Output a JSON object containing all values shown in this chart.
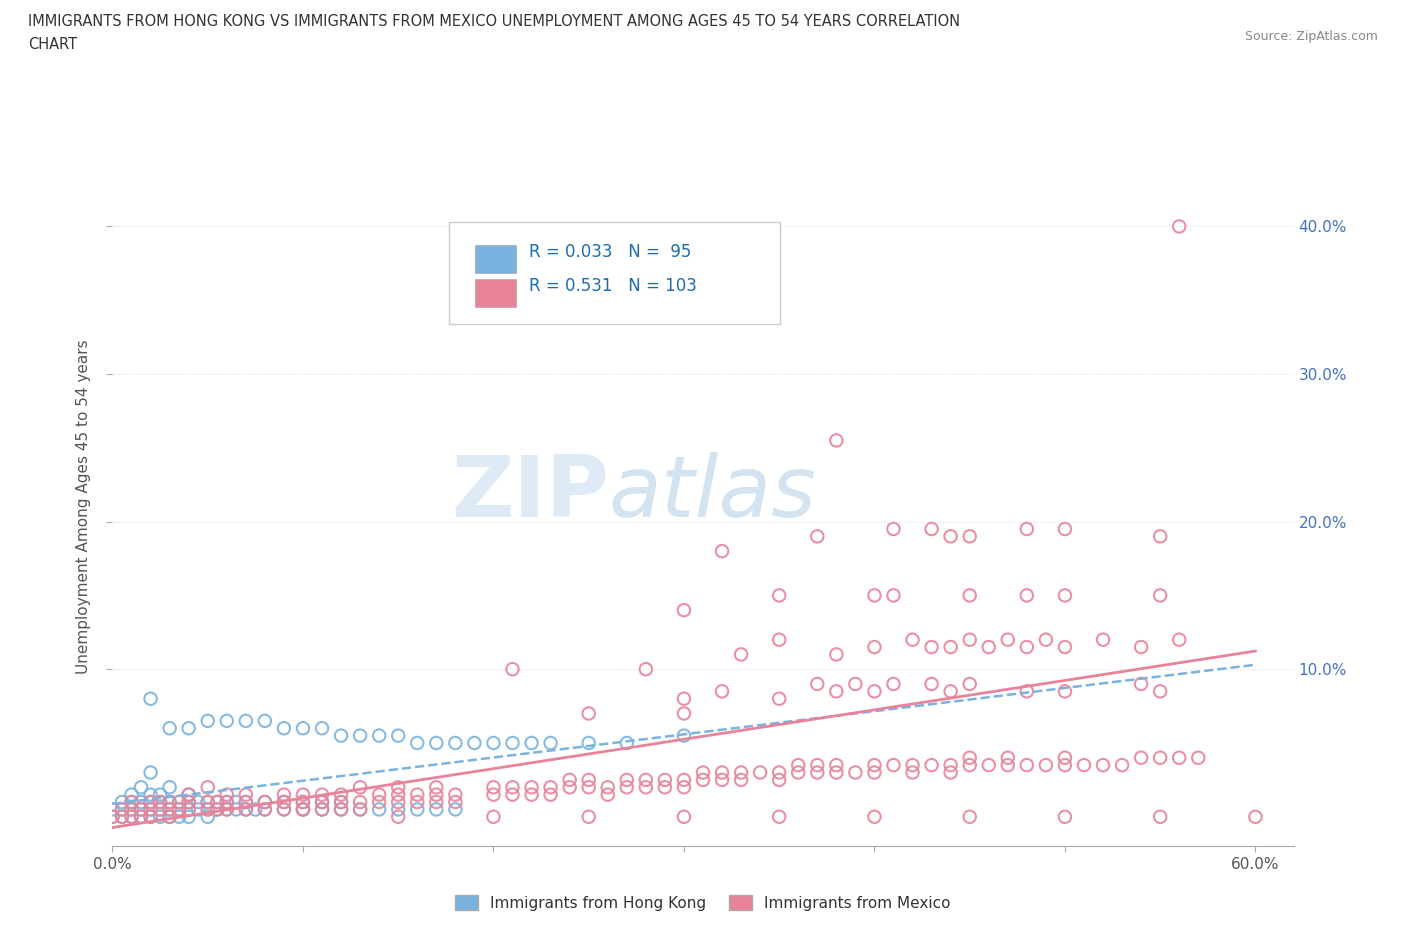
{
  "title_line1": "IMMIGRANTS FROM HONG KONG VS IMMIGRANTS FROM MEXICO UNEMPLOYMENT AMONG AGES 45 TO 54 YEARS CORRELATION",
  "title_line2": "CHART",
  "source_text": "Source: ZipAtlas.com",
  "ylabel": "Unemployment Among Ages 45 to 54 years",
  "xlim": [
    0.0,
    0.62
  ],
  "ylim": [
    -0.02,
    0.44
  ],
  "xticks": [
    0.0,
    0.1,
    0.2,
    0.3,
    0.4,
    0.5,
    0.6
  ],
  "xticklabels": [
    "0.0%",
    "",
    "",
    "",
    "",
    "",
    "60.0%"
  ],
  "ytick_positions": [
    0.1,
    0.2,
    0.3,
    0.4
  ],
  "ytick_labels": [
    "10.0%",
    "20.0%",
    "30.0%",
    "40.0%"
  ],
  "hk_color": "#7ab3e0",
  "mx_color": "#e8839a",
  "hk_line_color": "#7ab3e0",
  "mx_line_color": "#e8839a",
  "background_color": "#ffffff",
  "grid_color": "#e0e0e0",
  "watermark_color": "#d8e8f0",
  "hk_scatter": [
    [
      0.0,
      0.0
    ],
    [
      0.0,
      0.005
    ],
    [
      0.005,
      0.0
    ],
    [
      0.005,
      0.005
    ],
    [
      0.005,
      0.01
    ],
    [
      0.01,
      0.0
    ],
    [
      0.01,
      0.005
    ],
    [
      0.01,
      0.01
    ],
    [
      0.01,
      0.015
    ],
    [
      0.015,
      0.0
    ],
    [
      0.015,
      0.005
    ],
    [
      0.015,
      0.01
    ],
    [
      0.015,
      0.02
    ],
    [
      0.02,
      0.0
    ],
    [
      0.02,
      0.005
    ],
    [
      0.02,
      0.01
    ],
    [
      0.02,
      0.015
    ],
    [
      0.02,
      0.03
    ],
    [
      0.025,
      0.0
    ],
    [
      0.025,
      0.005
    ],
    [
      0.025,
      0.01
    ],
    [
      0.025,
      0.015
    ],
    [
      0.03,
      0.0
    ],
    [
      0.03,
      0.005
    ],
    [
      0.03,
      0.01
    ],
    [
      0.03,
      0.02
    ],
    [
      0.035,
      0.0
    ],
    [
      0.035,
      0.005
    ],
    [
      0.035,
      0.01
    ],
    [
      0.04,
      0.0
    ],
    [
      0.04,
      0.005
    ],
    [
      0.04,
      0.01
    ],
    [
      0.04,
      0.015
    ],
    [
      0.045,
      0.005
    ],
    [
      0.045,
      0.01
    ],
    [
      0.05,
      0.0
    ],
    [
      0.05,
      0.005
    ],
    [
      0.05,
      0.01
    ],
    [
      0.055,
      0.005
    ],
    [
      0.055,
      0.01
    ],
    [
      0.06,
      0.005
    ],
    [
      0.06,
      0.01
    ],
    [
      0.065,
      0.005
    ],
    [
      0.065,
      0.01
    ],
    [
      0.07,
      0.005
    ],
    [
      0.07,
      0.01
    ],
    [
      0.075,
      0.005
    ],
    [
      0.08,
      0.005
    ],
    [
      0.08,
      0.01
    ],
    [
      0.09,
      0.005
    ],
    [
      0.09,
      0.01
    ],
    [
      0.1,
      0.005
    ],
    [
      0.1,
      0.01
    ],
    [
      0.11,
      0.005
    ],
    [
      0.11,
      0.01
    ],
    [
      0.12,
      0.005
    ],
    [
      0.12,
      0.01
    ],
    [
      0.13,
      0.005
    ],
    [
      0.14,
      0.005
    ],
    [
      0.15,
      0.005
    ],
    [
      0.16,
      0.005
    ],
    [
      0.17,
      0.005
    ],
    [
      0.18,
      0.005
    ],
    [
      0.02,
      0.08
    ],
    [
      0.03,
      0.06
    ],
    [
      0.04,
      0.06
    ],
    [
      0.05,
      0.065
    ],
    [
      0.06,
      0.065
    ],
    [
      0.07,
      0.065
    ],
    [
      0.08,
      0.065
    ],
    [
      0.09,
      0.06
    ],
    [
      0.1,
      0.06
    ],
    [
      0.11,
      0.06
    ],
    [
      0.12,
      0.055
    ],
    [
      0.13,
      0.055
    ],
    [
      0.14,
      0.055
    ],
    [
      0.15,
      0.055
    ],
    [
      0.16,
      0.05
    ],
    [
      0.17,
      0.05
    ],
    [
      0.18,
      0.05
    ],
    [
      0.19,
      0.05
    ],
    [
      0.2,
      0.05
    ],
    [
      0.21,
      0.05
    ],
    [
      0.22,
      0.05
    ],
    [
      0.23,
      0.05
    ],
    [
      0.25,
      0.05
    ],
    [
      0.27,
      0.05
    ],
    [
      0.3,
      0.055
    ]
  ],
  "mx_scatter": [
    [
      0.0,
      0.0
    ],
    [
      0.005,
      0.0
    ],
    [
      0.005,
      0.005
    ],
    [
      0.01,
      0.0
    ],
    [
      0.01,
      0.005
    ],
    [
      0.01,
      0.01
    ],
    [
      0.015,
      0.0
    ],
    [
      0.015,
      0.005
    ],
    [
      0.02,
      0.0
    ],
    [
      0.02,
      0.005
    ],
    [
      0.02,
      0.01
    ],
    [
      0.025,
      0.005
    ],
    [
      0.025,
      0.01
    ],
    [
      0.03,
      0.0
    ],
    [
      0.03,
      0.005
    ],
    [
      0.03,
      0.01
    ],
    [
      0.035,
      0.005
    ],
    [
      0.035,
      0.01
    ],
    [
      0.04,
      0.005
    ],
    [
      0.04,
      0.01
    ],
    [
      0.04,
      0.015
    ],
    [
      0.05,
      0.005
    ],
    [
      0.05,
      0.01
    ],
    [
      0.05,
      0.02
    ],
    [
      0.055,
      0.005
    ],
    [
      0.055,
      0.01
    ],
    [
      0.06,
      0.005
    ],
    [
      0.06,
      0.01
    ],
    [
      0.06,
      0.015
    ],
    [
      0.07,
      0.005
    ],
    [
      0.07,
      0.01
    ],
    [
      0.07,
      0.015
    ],
    [
      0.08,
      0.005
    ],
    [
      0.08,
      0.01
    ],
    [
      0.09,
      0.005
    ],
    [
      0.09,
      0.01
    ],
    [
      0.09,
      0.015
    ],
    [
      0.1,
      0.005
    ],
    [
      0.1,
      0.01
    ],
    [
      0.1,
      0.015
    ],
    [
      0.11,
      0.005
    ],
    [
      0.11,
      0.01
    ],
    [
      0.11,
      0.015
    ],
    [
      0.12,
      0.005
    ],
    [
      0.12,
      0.01
    ],
    [
      0.12,
      0.015
    ],
    [
      0.13,
      0.005
    ],
    [
      0.13,
      0.01
    ],
    [
      0.13,
      0.02
    ],
    [
      0.14,
      0.01
    ],
    [
      0.14,
      0.015
    ],
    [
      0.15,
      0.01
    ],
    [
      0.15,
      0.015
    ],
    [
      0.15,
      0.02
    ],
    [
      0.16,
      0.01
    ],
    [
      0.16,
      0.015
    ],
    [
      0.17,
      0.01
    ],
    [
      0.17,
      0.015
    ],
    [
      0.17,
      0.02
    ],
    [
      0.18,
      0.01
    ],
    [
      0.18,
      0.015
    ],
    [
      0.2,
      0.015
    ],
    [
      0.2,
      0.02
    ],
    [
      0.21,
      0.015
    ],
    [
      0.21,
      0.02
    ],
    [
      0.22,
      0.015
    ],
    [
      0.22,
      0.02
    ],
    [
      0.23,
      0.015
    ],
    [
      0.23,
      0.02
    ],
    [
      0.24,
      0.02
    ],
    [
      0.24,
      0.025
    ],
    [
      0.25,
      0.02
    ],
    [
      0.25,
      0.025
    ],
    [
      0.26,
      0.015
    ],
    [
      0.26,
      0.02
    ],
    [
      0.27,
      0.02
    ],
    [
      0.27,
      0.025
    ],
    [
      0.28,
      0.02
    ],
    [
      0.28,
      0.025
    ],
    [
      0.29,
      0.02
    ],
    [
      0.29,
      0.025
    ],
    [
      0.3,
      0.02
    ],
    [
      0.3,
      0.025
    ],
    [
      0.31,
      0.025
    ],
    [
      0.31,
      0.03
    ],
    [
      0.32,
      0.025
    ],
    [
      0.32,
      0.03
    ],
    [
      0.33,
      0.025
    ],
    [
      0.33,
      0.03
    ],
    [
      0.34,
      0.03
    ],
    [
      0.35,
      0.025
    ],
    [
      0.35,
      0.03
    ],
    [
      0.36,
      0.03
    ],
    [
      0.36,
      0.035
    ],
    [
      0.37,
      0.03
    ],
    [
      0.37,
      0.035
    ],
    [
      0.38,
      0.03
    ],
    [
      0.38,
      0.035
    ],
    [
      0.39,
      0.03
    ],
    [
      0.4,
      0.03
    ],
    [
      0.4,
      0.035
    ],
    [
      0.41,
      0.035
    ],
    [
      0.42,
      0.03
    ],
    [
      0.42,
      0.035
    ],
    [
      0.43,
      0.035
    ],
    [
      0.44,
      0.03
    ],
    [
      0.44,
      0.035
    ],
    [
      0.45,
      0.035
    ],
    [
      0.45,
      0.04
    ],
    [
      0.46,
      0.035
    ],
    [
      0.47,
      0.035
    ],
    [
      0.47,
      0.04
    ],
    [
      0.48,
      0.035
    ],
    [
      0.49,
      0.035
    ],
    [
      0.5,
      0.035
    ],
    [
      0.5,
      0.04
    ],
    [
      0.51,
      0.035
    ],
    [
      0.52,
      0.035
    ],
    [
      0.53,
      0.035
    ],
    [
      0.54,
      0.04
    ],
    [
      0.55,
      0.04
    ],
    [
      0.56,
      0.04
    ],
    [
      0.57,
      0.04
    ],
    [
      0.25,
      0.07
    ],
    [
      0.3,
      0.08
    ],
    [
      0.3,
      0.07
    ],
    [
      0.32,
      0.085
    ],
    [
      0.35,
      0.08
    ],
    [
      0.37,
      0.09
    ],
    [
      0.38,
      0.085
    ],
    [
      0.39,
      0.09
    ],
    [
      0.4,
      0.085
    ],
    [
      0.41,
      0.09
    ],
    [
      0.43,
      0.09
    ],
    [
      0.44,
      0.085
    ],
    [
      0.45,
      0.09
    ],
    [
      0.48,
      0.085
    ],
    [
      0.5,
      0.085
    ],
    [
      0.54,
      0.09
    ],
    [
      0.55,
      0.085
    ],
    [
      0.21,
      0.1
    ],
    [
      0.28,
      0.1
    ],
    [
      0.33,
      0.11
    ],
    [
      0.35,
      0.12
    ],
    [
      0.38,
      0.11
    ],
    [
      0.4,
      0.115
    ],
    [
      0.42,
      0.12
    ],
    [
      0.43,
      0.115
    ],
    [
      0.44,
      0.115
    ],
    [
      0.45,
      0.12
    ],
    [
      0.46,
      0.115
    ],
    [
      0.47,
      0.12
    ],
    [
      0.48,
      0.115
    ],
    [
      0.49,
      0.12
    ],
    [
      0.5,
      0.115
    ],
    [
      0.52,
      0.12
    ],
    [
      0.54,
      0.115
    ],
    [
      0.56,
      0.12
    ],
    [
      0.3,
      0.14
    ],
    [
      0.35,
      0.15
    ],
    [
      0.4,
      0.15
    ],
    [
      0.41,
      0.15
    ],
    [
      0.45,
      0.15
    ],
    [
      0.48,
      0.15
    ],
    [
      0.5,
      0.15
    ],
    [
      0.55,
      0.15
    ],
    [
      0.32,
      0.18
    ],
    [
      0.37,
      0.19
    ],
    [
      0.41,
      0.195
    ],
    [
      0.43,
      0.195
    ],
    [
      0.44,
      0.19
    ],
    [
      0.45,
      0.19
    ],
    [
      0.48,
      0.195
    ],
    [
      0.5,
      0.195
    ],
    [
      0.55,
      0.19
    ],
    [
      0.38,
      0.255
    ],
    [
      0.56,
      0.4
    ],
    [
      0.1,
      0.005
    ],
    [
      0.15,
      0.0
    ],
    [
      0.2,
      0.0
    ],
    [
      0.25,
      0.0
    ],
    [
      0.3,
      0.0
    ],
    [
      0.35,
      0.0
    ],
    [
      0.4,
      0.0
    ],
    [
      0.45,
      0.0
    ],
    [
      0.5,
      0.0
    ],
    [
      0.55,
      0.0
    ],
    [
      0.6,
      0.0
    ]
  ]
}
